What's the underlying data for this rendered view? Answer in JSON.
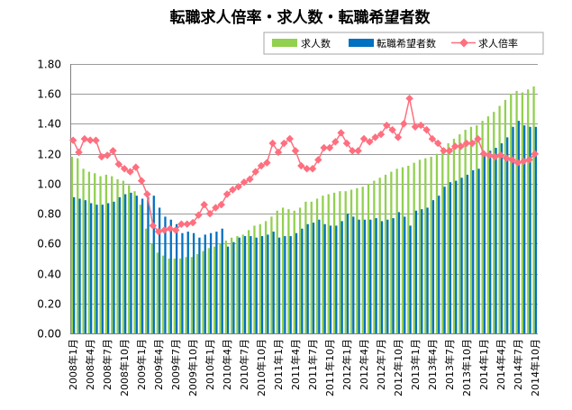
{
  "chart_data": {
    "type": "bar",
    "title": "転職求人倍率・求人数・転職希望者数",
    "xlabel": "",
    "ylabel": "",
    "ylim": [
      0,
      1.8
    ],
    "yticks": [
      0.0,
      0.2,
      0.4,
      0.6,
      0.8,
      1.0,
      1.2,
      1.4,
      1.6,
      1.8
    ],
    "grid": "horizontal",
    "legend_position": "top-right",
    "categories": [
      "2008年1月",
      "2008年2月",
      "2008年3月",
      "2008年4月",
      "2008年5月",
      "2008年6月",
      "2008年7月",
      "2008年8月",
      "2008年9月",
      "2008年10月",
      "2008年11月",
      "2008年12月",
      "2009年1月",
      "2009年2月",
      "2009年3月",
      "2009年4月",
      "2009年5月",
      "2009年6月",
      "2009年7月",
      "2009年8月",
      "2009年9月",
      "2009年10月",
      "2009年11月",
      "2009年12月",
      "2010年1月",
      "2010年2月",
      "2010年3月",
      "2010年4月",
      "2010年5月",
      "2010年6月",
      "2010年7月",
      "2010年8月",
      "2010年9月",
      "2010年10月",
      "2010年11月",
      "2010年12月",
      "2011年1月",
      "2011年2月",
      "2011年3月",
      "2011年4月",
      "2011年5月",
      "2011年6月",
      "2011年7月",
      "2011年8月",
      "2011年9月",
      "2011年10月",
      "2011年11月",
      "2011年12月",
      "2012年1月",
      "2012年2月",
      "2012年3月",
      "2012年4月",
      "2012年5月",
      "2012年6月",
      "2012年7月",
      "2012年8月",
      "2012年9月",
      "2012年10月",
      "2012年11月",
      "2012年12月",
      "2013年1月",
      "2013年2月",
      "2013年3月",
      "2013年4月",
      "2013年5月",
      "2013年6月",
      "2013年7月",
      "2013年8月",
      "2013年9月",
      "2013年10月",
      "2013年11月",
      "2013年12月",
      "2014年1月",
      "2014年2月",
      "2014年3月",
      "2014年4月",
      "2014年5月",
      "2014年6月",
      "2014年7月",
      "2014年8月",
      "2014年9月",
      "2014年10月"
    ],
    "xtick_labels_shown": [
      "2008年1月",
      "2008年4月",
      "2008年7月",
      "2008年10月",
      "2009年1月",
      "2009年4月",
      "2009年7月",
      "2009年10月",
      "2010年1月",
      "2010年4月",
      "2010年7月",
      "2010年10月",
      "2011年1月",
      "2011年4月",
      "2011年7月",
      "2011年10月",
      "2012年1月",
      "2012年4月",
      "2012年7月",
      "2012年10月",
      "2013年1月",
      "2013年4月",
      "2013年7月",
      "2013年10月",
      "2014年1月",
      "2014年4月",
      "2014年7月",
      "2014年10月"
    ],
    "series": [
      {
        "name": "求人数",
        "kind": "bar",
        "color": "#92d050",
        "values": [
          1.18,
          1.17,
          1.1,
          1.08,
          1.07,
          1.05,
          1.06,
          1.05,
          1.03,
          1.02,
          0.99,
          0.95,
          0.86,
          0.7,
          0.6,
          0.54,
          0.52,
          0.5,
          0.5,
          0.5,
          0.51,
          0.51,
          0.53,
          0.55,
          0.57,
          0.58,
          0.6,
          0.62,
          0.64,
          0.65,
          0.66,
          0.69,
          0.72,
          0.73,
          0.75,
          0.78,
          0.82,
          0.84,
          0.83,
          0.82,
          0.84,
          0.88,
          0.88,
          0.9,
          0.92,
          0.93,
          0.94,
          0.95,
          0.95,
          0.96,
          0.97,
          0.98,
          1.0,
          1.02,
          1.04,
          1.06,
          1.08,
          1.1,
          1.11,
          1.12,
          1.14,
          1.16,
          1.17,
          1.18,
          1.2,
          1.24,
          1.27,
          1.3,
          1.33,
          1.36,
          1.38,
          1.39,
          1.42,
          1.45,
          1.48,
          1.52,
          1.56,
          1.6,
          1.62,
          1.61,
          1.63,
          1.65
        ]
      },
      {
        "name": "転職希望者数",
        "kind": "bar",
        "color": "#0070c0",
        "values": [
          0.91,
          0.9,
          0.89,
          0.87,
          0.86,
          0.86,
          0.87,
          0.88,
          0.91,
          0.93,
          0.94,
          0.92,
          0.9,
          0.91,
          0.92,
          0.84,
          0.78,
          0.76,
          0.73,
          0.67,
          0.68,
          0.67,
          0.64,
          0.66,
          0.67,
          0.68,
          0.7,
          0.58,
          0.61,
          0.64,
          0.65,
          0.65,
          0.64,
          0.65,
          0.66,
          0.68,
          0.64,
          0.65,
          0.65,
          0.67,
          0.7,
          0.73,
          0.74,
          0.76,
          0.73,
          0.72,
          0.72,
          0.75,
          0.8,
          0.78,
          0.76,
          0.76,
          0.76,
          0.77,
          0.75,
          0.76,
          0.77,
          0.81,
          0.78,
          0.72,
          0.82,
          0.83,
          0.84,
          0.89,
          0.92,
          0.98,
          1.01,
          1.02,
          1.04,
          1.06,
          1.09,
          1.1,
          1.19,
          1.22,
          1.24,
          1.27,
          1.31,
          1.38,
          1.42,
          1.39,
          1.38,
          1.38
        ]
      },
      {
        "name": "求人倍率",
        "kind": "line",
        "color": "#ff6f7f",
        "values": [
          1.29,
          1.21,
          1.3,
          1.29,
          1.29,
          1.18,
          1.19,
          1.22,
          1.13,
          1.1,
          1.08,
          1.11,
          1.02,
          0.93,
          0.72,
          0.68,
          0.69,
          0.7,
          0.69,
          0.73,
          0.73,
          0.74,
          0.79,
          0.86,
          0.8,
          0.84,
          0.86,
          0.93,
          0.96,
          0.98,
          1.01,
          1.03,
          1.08,
          1.12,
          1.14,
          1.27,
          1.21,
          1.27,
          1.3,
          1.22,
          1.12,
          1.1,
          1.1,
          1.16,
          1.24,
          1.24,
          1.28,
          1.34,
          1.27,
          1.22,
          1.22,
          1.3,
          1.28,
          1.31,
          1.33,
          1.39,
          1.36,
          1.31,
          1.4,
          1.57,
          1.38,
          1.39,
          1.36,
          1.3,
          1.27,
          1.22,
          1.22,
          1.25,
          1.25,
          1.27,
          1.27,
          1.3,
          1.2,
          1.19,
          1.18,
          1.19,
          1.17,
          1.16,
          1.14,
          1.15,
          1.16,
          1.2
        ]
      }
    ]
  }
}
